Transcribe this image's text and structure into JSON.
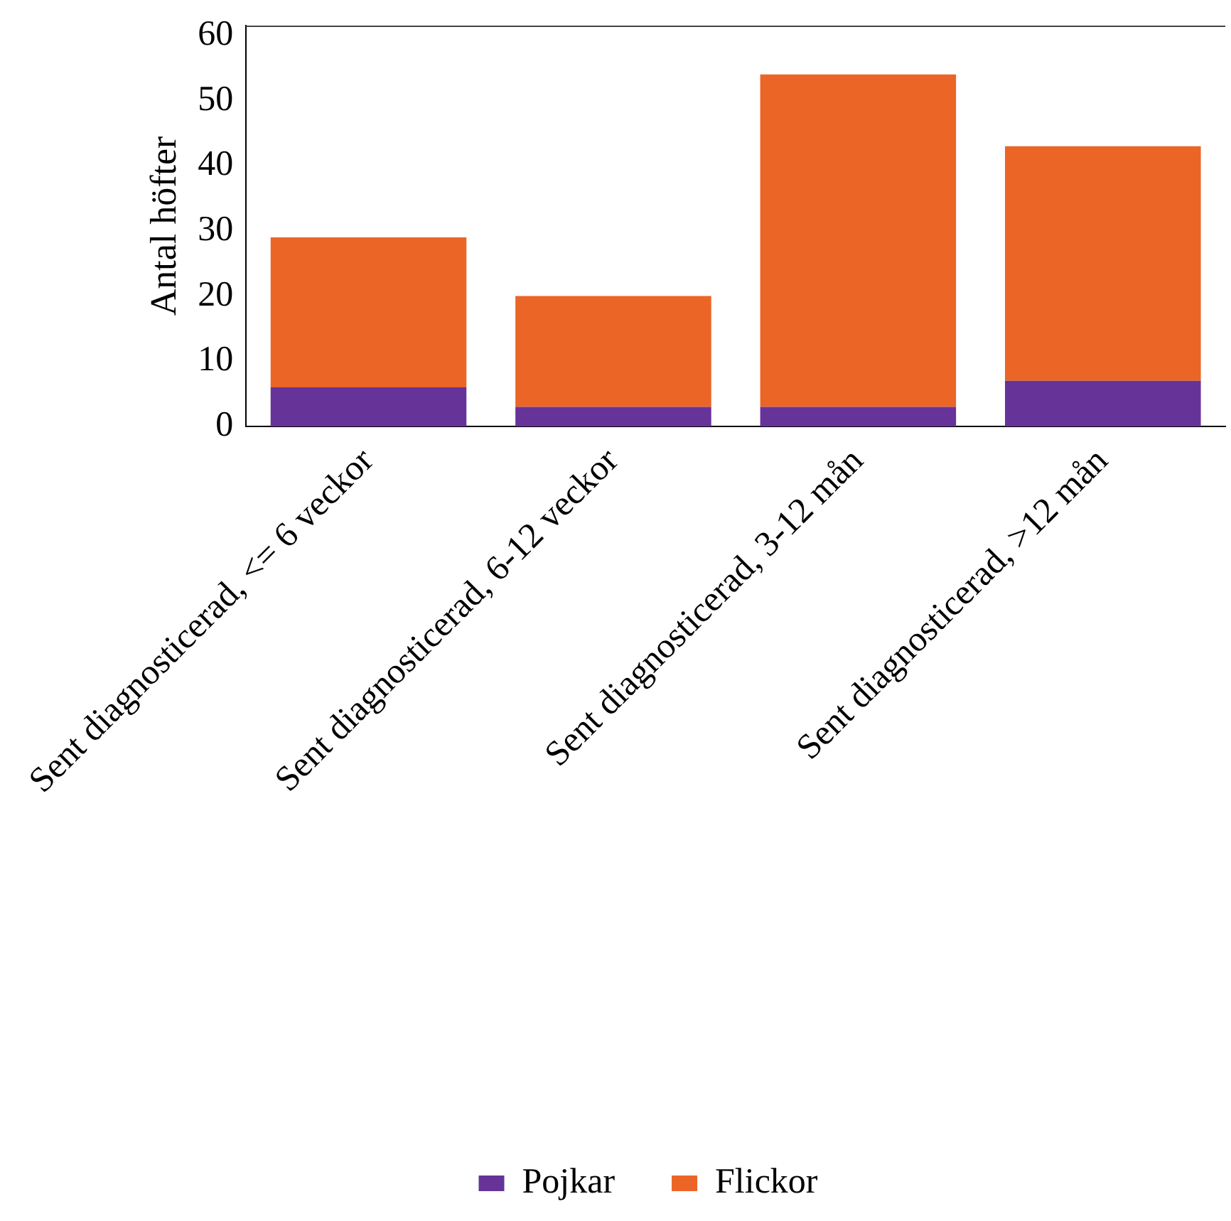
{
  "chart_data": {
    "type": "bar",
    "ylabel": "Antal höfter",
    "categories": [
      "Sent diagnosticerad, <= 6 veckor",
      "Sent diagnosticerad, 6-12 veckor",
      "Sent diagnosticerad, 3-12 mån",
      "Sent diagnosticerad, >12 mån"
    ],
    "stacked": true,
    "series": [
      {
        "name": "Pojkar",
        "color": "#663399",
        "values": [
          6,
          3,
          3,
          7
        ]
      },
      {
        "name": "Flickor",
        "color": "#eb6527",
        "values": [
          23,
          17,
          51,
          36
        ]
      }
    ],
    "ylim": [
      0,
      61.5
    ],
    "yticks": [
      0,
      10,
      20,
      30,
      40,
      50,
      60
    ],
    "grid": false,
    "legend": "bottom"
  }
}
